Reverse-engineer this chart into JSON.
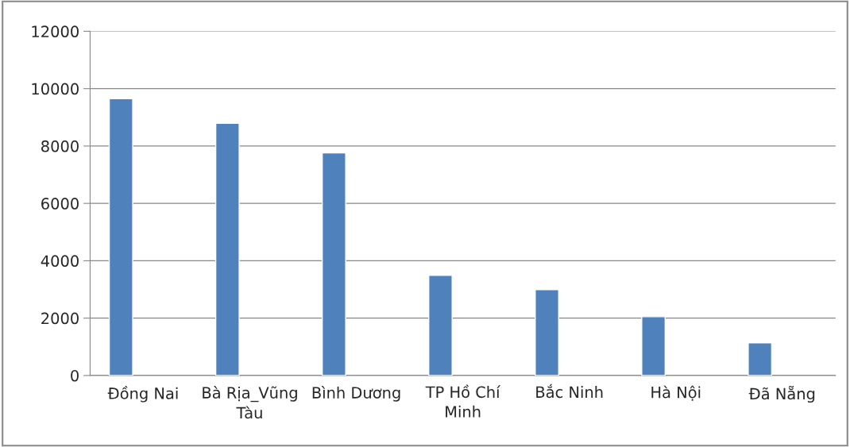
{
  "chart_data": {
    "type": "bar",
    "categories": [
      "Đồng Nai",
      "Bà Rịa_Vũng Tàu",
      "Bình Dương",
      "TP Hồ Chí Minh",
      "Bắc Ninh",
      "Hà Nội",
      "Đã Nẵng"
    ],
    "values": [
      9650,
      8790,
      7760,
      3490,
      2990,
      2050,
      1140
    ],
    "color": "#4f81bd",
    "ylim": [
      0,
      12000
    ],
    "yticks": [
      0,
      2000,
      4000,
      6000,
      8000,
      10000,
      12000
    ],
    "grid": "y"
  }
}
